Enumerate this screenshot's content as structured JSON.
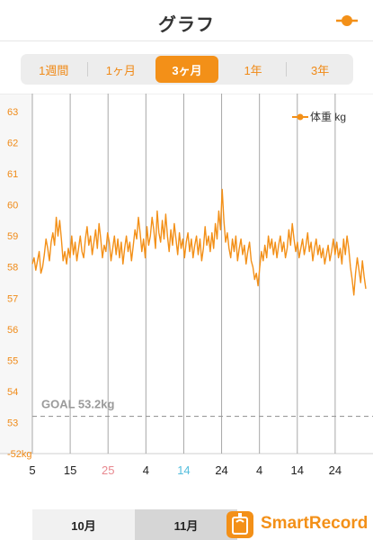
{
  "header": {
    "title": "グラフ"
  },
  "tabs": [
    {
      "label": "1週間",
      "active": false
    },
    {
      "label": "1ヶ月",
      "active": false
    },
    {
      "label": "3ヶ月",
      "active": true
    },
    {
      "label": "1年",
      "active": false
    },
    {
      "label": "3年",
      "active": false
    }
  ],
  "chart_data": {
    "type": "line",
    "legend": "体重 kg",
    "legend_position": "top-right",
    "y_ticks": [
      "63",
      "62",
      "61",
      "60",
      "59",
      "58",
      "57",
      "56",
      "55",
      "54",
      "53",
      "-52kg"
    ],
    "ylim": [
      52,
      63
    ],
    "x_ticks": [
      {
        "label": "5",
        "color": "default"
      },
      {
        "label": "15",
        "color": "default"
      },
      {
        "label": "25",
        "color": "red"
      },
      {
        "label": "4",
        "color": "default"
      },
      {
        "label": "14",
        "color": "blue"
      },
      {
        "label": "24",
        "color": "default"
      },
      {
        "label": "4",
        "color": "default"
      },
      {
        "label": "14",
        "color": "default"
      },
      {
        "label": "24",
        "color": "default"
      }
    ],
    "goal": {
      "label": "GOAL 53.2kg",
      "value": 53.2
    },
    "series": [
      {
        "values": [
          58.1,
          58.3,
          57.9,
          58.2,
          58.5,
          57.8,
          58.0,
          58.4,
          58.9,
          58.6,
          58.2,
          58.8,
          59.1,
          58.7,
          59.6,
          59.0,
          59.5,
          58.9,
          58.2,
          58.5,
          58.1,
          58.6,
          58.3,
          59.0,
          58.4,
          58.8,
          58.2,
          58.6,
          59.0,
          58.5,
          58.3,
          58.9,
          59.3,
          58.7,
          59.0,
          58.4,
          58.8,
          59.2,
          58.6,
          59.4,
          58.9,
          58.3,
          58.7,
          58.5,
          59.1,
          58.8,
          58.2,
          58.6,
          59.0,
          58.4,
          58.9,
          58.3,
          58.8,
          58.1,
          58.6,
          59.0,
          58.5,
          58.8,
          58.2,
          58.7,
          59.2,
          58.9,
          59.6,
          59.1,
          58.5,
          58.9,
          58.3,
          59.3,
          58.7,
          59.0,
          59.6,
          59.2,
          58.6,
          59.8,
          59.1,
          58.8,
          59.5,
          58.9,
          59.7,
          59.0,
          58.5,
          59.2,
          58.7,
          59.4,
          58.9,
          58.4,
          59.1,
          58.6,
          58.9,
          58.3,
          58.8,
          59.1,
          58.5,
          58.9,
          58.3,
          58.7,
          59.0,
          58.4,
          58.9,
          58.2,
          58.6,
          59.3,
          58.7,
          59.0,
          58.5,
          59.1,
          58.6,
          59.4,
          58.9,
          59.8,
          59.2,
          60.5,
          59.5,
          58.8,
          59.1,
          58.6,
          58.3,
          58.9,
          58.5,
          59.0,
          58.2,
          58.6,
          58.9,
          58.4,
          58.7,
          58.1,
          58.5,
          58.8,
          58.2,
          58.0,
          57.6,
          57.8,
          57.4,
          58.0,
          58.5,
          58.2,
          58.7,
          58.3,
          59.0,
          58.6,
          58.9,
          58.4,
          58.8,
          58.3,
          58.7,
          59.0,
          58.5,
          58.8,
          58.3,
          58.6,
          59.2,
          58.7,
          59.4,
          58.9,
          58.5,
          58.8,
          58.3,
          58.6,
          58.9,
          58.4,
          58.7,
          59.1,
          58.5,
          58.8,
          58.2,
          58.6,
          58.9,
          58.4,
          58.7,
          58.3,
          58.6,
          58.1,
          58.4,
          58.7,
          58.2,
          58.5,
          58.9,
          58.4,
          58.8,
          58.3,
          58.6,
          58.1,
          58.9,
          58.4,
          59.0,
          58.6,
          58.0,
          57.6,
          57.1,
          57.8,
          58.3,
          57.9,
          57.5,
          58.2,
          57.7,
          57.3
        ]
      }
    ]
  },
  "months": [
    "10月",
    "11月"
  ],
  "brand": {
    "name": "SmartRecord"
  }
}
